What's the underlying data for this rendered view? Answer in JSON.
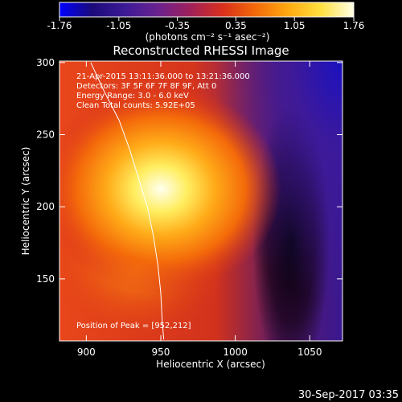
{
  "chart_data": {
    "type": "heatmap",
    "title": "Reconstructed RHESSI Image",
    "xlabel": "Heliocentric X (arcsec)",
    "ylabel": "Heliocentric Y (arcsec)",
    "xlim": [
      882,
      1072
    ],
    "ylim": [
      107,
      301
    ],
    "x_ticks": [
      900,
      950,
      1000,
      1050
    ],
    "y_ticks": [
      150,
      200,
      250,
      300
    ],
    "colorbar": {
      "label": "(photons cm⁻² s⁻¹ asec⁻²)",
      "range": [
        -1.76,
        1.76
      ],
      "ticks": [
        "-1.76",
        "-1.05",
        "-0.35",
        "0.35",
        "1.05",
        "1.76"
      ],
      "colors": [
        "#0000ff",
        "#1b0a7a",
        "#3c1a96",
        "#6a2290",
        "#a0205a",
        "#d8301c",
        "#f46a0a",
        "#ffaa10",
        "#ffe040",
        "#ffffe8"
      ]
    },
    "annotations": [
      "21-Apr-2015 13:11:36.000 to 13:21:36.000",
      "Detectors: 3F 5F 6F 7F 8F 9F, Att 0",
      "Energy Range: 3.0 - 6.0 keV",
      "Clean    Total counts: 5.92E+05"
    ],
    "peak_label": "Position of Peak = [952,212]",
    "peak": [
      952,
      212
    ],
    "limb_curve": [
      [
        903,
        300
      ],
      [
        912,
        280
      ],
      [
        922,
        260
      ],
      [
        929,
        240
      ],
      [
        935,
        220
      ],
      [
        941,
        200
      ],
      [
        945,
        180
      ],
      [
        948,
        160
      ],
      [
        950,
        140
      ],
      [
        951,
        120
      ],
      [
        952,
        108
      ]
    ]
  },
  "footer": {
    "date": "30-Sep-2017 03:35"
  }
}
